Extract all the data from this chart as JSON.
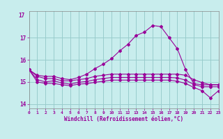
{
  "xlabel": "Windchill (Refroidissement éolien,°C)",
  "bg_color": "#c8eded",
  "line_color": "#990099",
  "grid_color": "#99cccc",
  "xlim": [
    0,
    23
  ],
  "ylim": [
    13.8,
    18.2
  ],
  "yticks": [
    14,
    15,
    16,
    17
  ],
  "xticks": [
    0,
    1,
    2,
    3,
    4,
    5,
    6,
    7,
    8,
    9,
    10,
    11,
    12,
    13,
    14,
    15,
    16,
    17,
    18,
    19,
    20,
    21,
    22,
    23
  ],
  "hours": [
    0,
    1,
    2,
    3,
    4,
    5,
    6,
    7,
    8,
    9,
    10,
    11,
    12,
    13,
    14,
    15,
    16,
    17,
    18,
    19,
    20,
    21,
    22,
    23
  ],
  "temp": [
    15.55,
    15.3,
    15.25,
    15.25,
    15.15,
    15.1,
    15.2,
    15.35,
    15.6,
    15.8,
    16.05,
    16.4,
    16.7,
    17.1,
    17.25,
    17.55,
    17.5,
    17.0,
    16.5,
    15.55,
    14.92,
    14.87,
    14.87,
    14.87
  ],
  "wc1": [
    15.55,
    15.25,
    15.15,
    15.15,
    15.05,
    15.05,
    15.1,
    15.15,
    15.25,
    15.3,
    15.35,
    15.35,
    15.35,
    15.35,
    15.35,
    15.35,
    15.35,
    15.35,
    15.35,
    15.3,
    15.1,
    14.97,
    14.87,
    14.87
  ],
  "wc2": [
    15.55,
    15.1,
    15.0,
    15.05,
    14.95,
    14.9,
    14.98,
    15.02,
    15.1,
    15.15,
    15.2,
    15.2,
    15.2,
    15.2,
    15.2,
    15.2,
    15.2,
    15.2,
    15.18,
    15.08,
    14.88,
    14.78,
    14.78,
    14.78
  ],
  "wc3": [
    15.55,
    15.0,
    14.93,
    14.93,
    14.87,
    14.83,
    14.9,
    14.92,
    14.98,
    15.03,
    15.08,
    15.08,
    15.08,
    15.08,
    15.08,
    15.08,
    15.08,
    15.08,
    15.03,
    14.93,
    14.75,
    14.6,
    14.28,
    14.6
  ]
}
